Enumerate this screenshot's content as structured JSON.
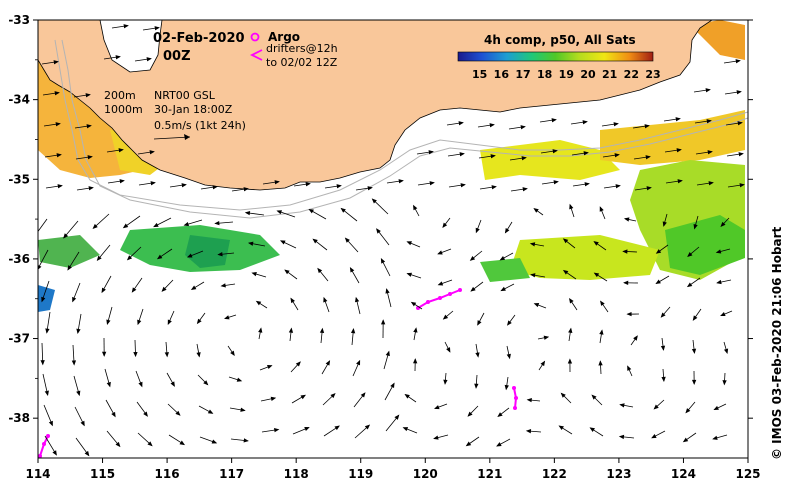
{
  "map": {
    "date": "02-Feb-2020",
    "hour": "00Z",
    "legend": {
      "argo": "Argo",
      "drifters": "drifters@12h",
      "drifters_to": "to 02/02 12Z"
    },
    "isobaths": {
      "a": "200m",
      "b": "1000m"
    },
    "product": {
      "name": "NRT00 GSL",
      "date": "30-Jan 18:00Z",
      "scale": "0.5m/s (1kt 24h)"
    },
    "colorbar": {
      "title": "4h comp, p50, All Sats",
      "min": 14,
      "max": 23,
      "tick_labels": [
        "15",
        "16",
        "17",
        "18",
        "19",
        "20",
        "21",
        "22",
        "23"
      ]
    },
    "axes": {
      "lon_range": [
        114,
        125
      ],
      "lat_range": [
        -38.5,
        -33
      ],
      "lon_labels": [
        "114",
        "115",
        "116",
        "117",
        "118",
        "119",
        "120",
        "121",
        "122",
        "123",
        "124",
        "125"
      ],
      "lat_labels": [
        "-33",
        "-34",
        "-35",
        "-36",
        "-37",
        "-38"
      ]
    },
    "credit": "© IMOS 03-Feb-2020 21:06 Hobart",
    "colors": {
      "land": "#f9c79a",
      "drifter": "#ff00ff",
      "isobath": "#b4b4b4"
    }
  }
}
